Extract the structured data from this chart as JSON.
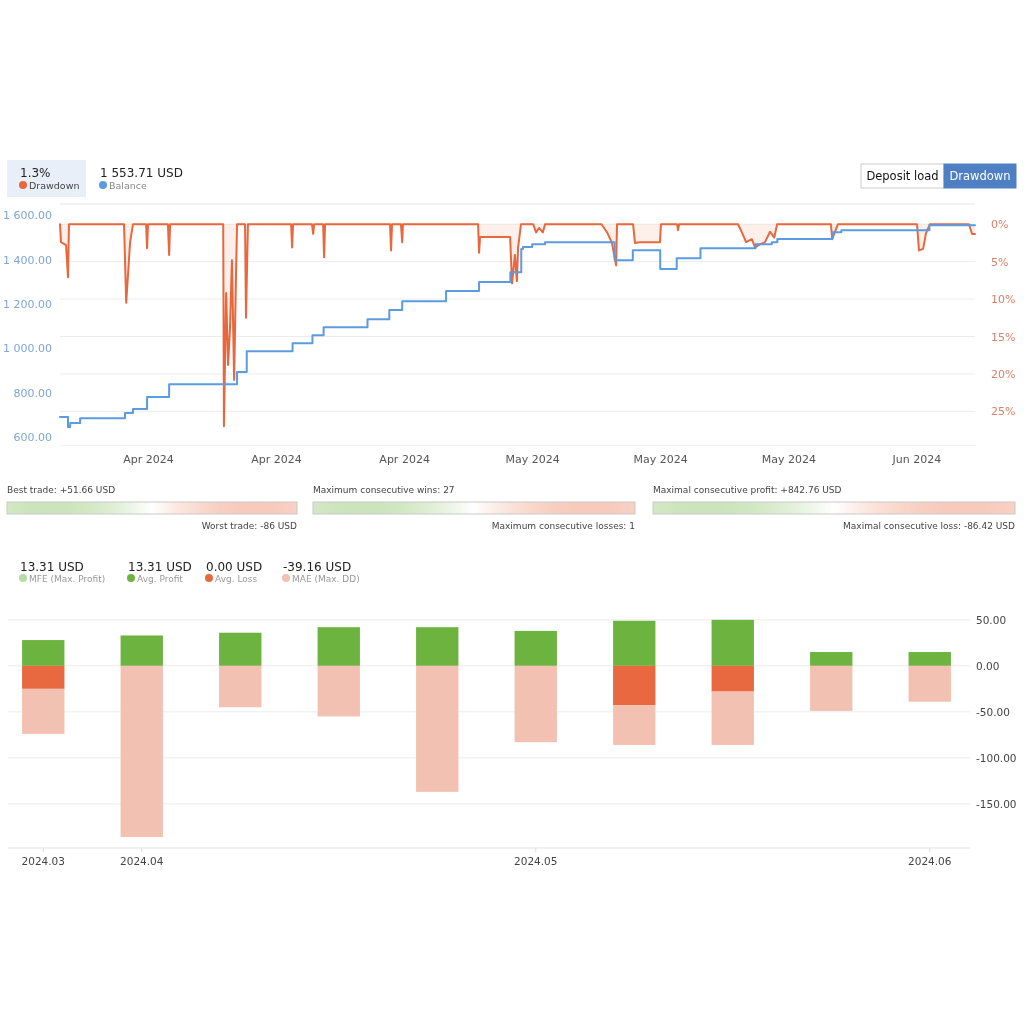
{
  "chart_data": [
    {
      "type": "line",
      "legend": "top left",
      "grid": "y",
      "annotations": [
        "1.3%",
        "1 553.71 USD",
        "Deposit load",
        "Drawdown"
      ],
      "xlim": [
        "2024-03-29T10:30",
        "2024-06-16T01:00"
      ],
      "xticks": [
        {
          "value": "2024-04-06",
          "label": "Apr 2024"
        },
        {
          "value": "2024-04-17",
          "label": "Apr 2024"
        },
        {
          "value": "2024-04-28",
          "label": "Apr 2024"
        },
        {
          "value": "2024-05-09",
          "label": "May 2024"
        },
        {
          "value": "2024-05-20",
          "label": "May 2024"
        },
        {
          "value": "2024-05-31",
          "label": "May 2024"
        },
        {
          "value": "2024-06-11",
          "label": "Jun 2024"
        }
      ],
      "ylim": [
        564,
        1650
      ],
      "yticks": [
        {
          "value": 600,
          "label": "600.00"
        },
        {
          "value": 800,
          "label": "800.00"
        },
        {
          "value": 1000,
          "label": "1 000.00"
        },
        {
          "value": 1200,
          "label": "1 200.00"
        },
        {
          "value": 1400,
          "label": "1 400.00"
        },
        {
          "value": 1600,
          "label": "1 600.00"
        }
      ],
      "y2lim": [
        29.5,
        -2.7
      ],
      "y2ticks": [
        {
          "value": 0,
          "label": "0%"
        },
        {
          "value": 5,
          "label": "5%"
        },
        {
          "value": 10,
          "label": "10%"
        },
        {
          "value": 15,
          "label": "15%"
        },
        {
          "value": 20,
          "label": "20%"
        },
        {
          "value": 25,
          "label": "25%"
        }
      ],
      "series": [
        {
          "name": "Drawdown",
          "type": "area",
          "axis": "y2",
          "color": "#e8673c",
          "x": [
            "2024-03-29T10:30",
            "2024-03-29T12:30",
            "2024-03-29T23:00",
            "2024-03-30T03:00",
            "2024-03-30T05:00",
            "2024-04-03T22:30",
            "2024-04-04T03:00",
            "2024-04-04T11:00",
            "2024-04-04T17:00",
            "2024-04-05T20:00",
            "2024-04-05T22:00",
            "2024-04-06T00:00",
            "2024-04-07T17:00",
            "2024-04-07T19:30",
            "2024-04-07T21:30",
            "2024-04-12T11:00",
            "2024-04-12T12:30",
            "2024-04-12T17:00",
            "2024-04-12T21:00",
            "2024-04-13T01:00",
            "2024-04-13T05:00",
            "2024-04-13T09:30",
            "2024-04-13T13:30",
            "2024-04-13T15:30",
            "2024-04-14T08:00",
            "2024-04-14T10:00",
            "2024-04-14T14:00",
            "2024-04-18T07:00",
            "2024-04-18T09:00",
            "2024-04-18T11:00",
            "2024-04-20T02:00",
            "2024-04-20T04:30",
            "2024-04-20T06:30",
            "2024-04-21T01:00",
            "2024-04-21T03:00",
            "2024-04-21T05:00",
            "2024-04-26T19:00",
            "2024-04-26T21:00",
            "2024-04-26T23:00",
            "2024-04-27T17:30",
            "2024-04-27T20:00",
            "2024-04-27T21:30",
            "2024-05-04T08:30",
            "2024-05-04T10:30",
            "2024-05-04T12:30",
            "2024-05-07T02:30",
            "2024-05-07T06:30",
            "2024-05-07T12:30",
            "2024-05-07T16:30",
            "2024-05-07T19:00",
            "2024-05-08T01:00",
            "2024-05-09T02:00",
            "2024-05-09T08:00",
            "2024-05-09T14:00",
            "2024-05-09T22:00",
            "2024-05-10T02:30",
            "2024-05-14T23:00",
            "2024-05-15T10:30",
            "2024-05-15T20:30",
            "2024-05-16T05:00",
            "2024-05-16T07:00",
            "2024-05-17T16:00",
            "2024-05-17T20:00",
            "2024-05-18T06:00",
            "2024-05-19T23:30",
            "2024-05-20T01:30",
            "2024-05-21T11:00",
            "2024-05-21T12:30",
            "2024-05-21T15:00",
            "2024-05-26T16:30",
            "2024-05-27T02:30",
            "2024-05-27T09:00",
            "2024-05-27T21:00",
            "2024-05-28T03:30",
            "2024-05-28T13:30",
            "2024-05-29T00:00",
            "2024-05-29T10:30",
            "2024-05-29T19:00",
            "2024-05-30T01:00",
            "2024-06-03T16:00",
            "2024-06-03T18:30",
            "2024-06-04T06:30",
            "2024-06-11T01:30",
            "2024-06-11T05:30",
            "2024-06-11T14:00",
            "2024-06-11T20:00",
            "2024-06-12T04:00",
            "2024-06-15T12:30",
            "2024-06-15T19:00",
            "2024-06-16T01:00"
          ],
          "values": [
            0,
            2.4,
            2.8,
            7.1,
            0,
            0,
            10.5,
            2.4,
            0,
            0,
            3.2,
            0,
            0,
            4.1,
            0,
            0,
            27,
            9.2,
            18.8,
            13.9,
            4.8,
            20.8,
            6.4,
            0,
            0,
            12.5,
            0,
            0,
            3.1,
            0,
            0,
            1.3,
            0,
            0,
            4.4,
            0,
            0,
            3.5,
            0,
            0,
            2.4,
            0,
            0,
            3.8,
            1.7,
            1.7,
            7.9,
            4.1,
            7.6,
            3.1,
            0,
            0,
            1.1,
            0.5,
            1.1,
            0,
            0,
            1.1,
            2.5,
            5.5,
            0,
            0,
            2.5,
            2.4,
            2.4,
            0,
            0,
            0.8,
            0,
            0,
            1.4,
            2.4,
            2,
            3.1,
            2.7,
            2.4,
            1,
            1.8,
            0,
            0,
            2,
            0,
            0,
            3.5,
            3.3,
            1.2,
            0,
            0,
            1.3,
            1.3
          ]
        },
        {
          "name": "Balance",
          "type": "step",
          "color": "#5b9bdf",
          "x": [
            "2024-03-29T10:30",
            "2024-03-30T03:00",
            "2024-03-30T07:30",
            "2024-03-31T04:00",
            "2024-04-04T00:30",
            "2024-04-04T17:00",
            "2024-04-05T22:00",
            "2024-04-07T19:30",
            "2024-04-13T15:30",
            "2024-04-14T11:30",
            "2024-04-18T10:00",
            "2024-04-20T03:00",
            "2024-04-21T02:00",
            "2024-04-24T20:30",
            "2024-04-26T17:30",
            "2024-04-27T20:00",
            "2024-05-01T14:30",
            "2024-05-04T10:30",
            "2024-05-07T03:00",
            "2024-05-08T01:30",
            "2024-05-08T05:00",
            "2024-05-09T00:00",
            "2024-05-10T02:30",
            "2024-05-16T02:00",
            "2024-05-17T15:30",
            "2024-05-20T00:00",
            "2024-05-21T10:00",
            "2024-05-23T11:00",
            "2024-05-28T04:30",
            "2024-05-29T14:00",
            "2024-05-30T01:30",
            "2024-06-03T19:00",
            "2024-06-04T13:30",
            "2024-06-12T03:00",
            "2024-06-16T01:00"
          ],
          "values": [
            690,
            645,
            663,
            685,
            708,
            726,
            780,
            838,
            893,
            987,
            1023,
            1059,
            1095,
            1131,
            1172,
            1212,
            1258,
            1298,
            1343,
            1447,
            1456,
            1469,
            1478,
            1397,
            1442,
            1357,
            1406,
            1451,
            1469,
            1478,
            1492,
            1523,
            1532,
            1554,
            1554
          ]
        }
      ]
    },
    {
      "type": "other",
      "annotations": [
        "Best trade: +51.66 USD",
        "Worst trade: -86 USD",
        "Maximum consecutive wins: 27",
        "Maximum consecutive losses: 1",
        "Maximal consecutive profit: +842.76 USD",
        "Maximal consecutive loss: -86.42 USD"
      ]
    },
    {
      "type": "bar",
      "stacked": true,
      "legend": "top left",
      "grid": "y",
      "annotations": [
        "13.31 USD",
        "13.31 USD",
        "0.00 USD",
        "-39.16 USD"
      ],
      "categories": [
        "2024.03",
        "2024.04",
        null,
        null,
        null,
        "2024.05",
        null,
        null,
        null,
        "2024.06"
      ],
      "ylim": [
        -198,
        52
      ],
      "yticks": [
        {
          "value": -150,
          "label": "-150.00"
        },
        {
          "value": -100,
          "label": "-100.00"
        },
        {
          "value": -50,
          "label": "-50.00"
        },
        {
          "value": 0,
          "label": "0.00"
        },
        {
          "value": 50,
          "label": "50.00"
        }
      ],
      "series": [
        {
          "name": "MFE (Max. Profit)",
          "color": "#b5dca5",
          "values": [
            null,
            null,
            null,
            null,
            null,
            null,
            null,
            null,
            null,
            null
          ]
        },
        {
          "name": "Avg. Profit",
          "color": "#6db33f",
          "values": [
            28,
            33,
            36,
            42,
            42,
            38,
            49,
            50,
            15,
            15
          ]
        },
        {
          "name": "Avg. Loss",
          "color": "#e8693f",
          "values": [
            -25,
            null,
            null,
            null,
            null,
            null,
            -43,
            -28,
            null,
            null
          ]
        },
        {
          "name": "MAE (Max. DD)",
          "color": "#f3c1b1",
          "values": [
            -49,
            -186,
            -45,
            -55,
            -137,
            -83,
            -43,
            -58,
            -49,
            -39
          ]
        }
      ]
    }
  ]
}
